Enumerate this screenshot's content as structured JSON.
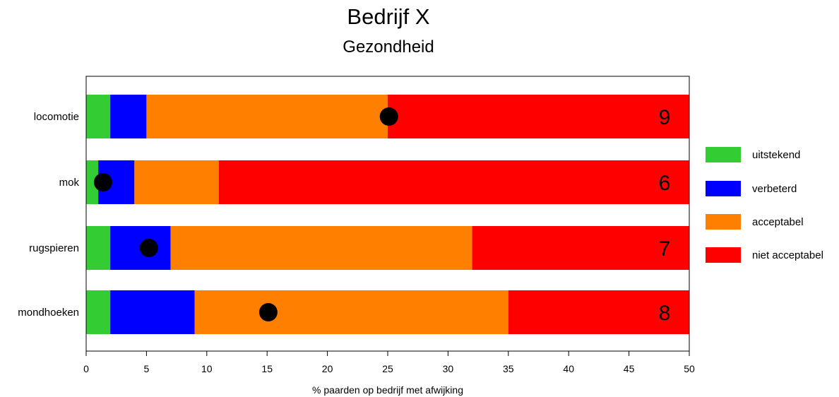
{
  "chart_data": {
    "type": "bar",
    "stacked": true,
    "orientation": "horizontal",
    "title": "Bedrijf X",
    "subtitle": "Gezondheid",
    "xlabel": "% paarden op bedrijf met afwijking",
    "ylabel": "",
    "xlim": [
      0,
      50
    ],
    "xticks": [
      0,
      5,
      10,
      15,
      20,
      25,
      30,
      35,
      40,
      45,
      50
    ],
    "categories": [
      "locomotie",
      "mok",
      "rugspieren",
      "mondhoeken"
    ],
    "series": [
      {
        "name": "uitstekend",
        "color": "#33cc33",
        "values": [
          2,
          1,
          2,
          2
        ]
      },
      {
        "name": "verbeterd",
        "color": "#0000ff",
        "values": [
          3,
          3,
          5,
          7
        ]
      },
      {
        "name": "acceptabel",
        "color": "#ff8000",
        "values": [
          20,
          7,
          25,
          26
        ]
      },
      {
        "name": "niet acceptabel",
        "color": "#ff0000",
        "values": [
          25,
          39,
          18,
          15
        ]
      }
    ],
    "markers": [
      25.1,
      1.4,
      5.2,
      15.1
    ],
    "scores": [
      "9",
      "6",
      "7",
      "8"
    ],
    "legend_position": "right",
    "grid": false
  }
}
